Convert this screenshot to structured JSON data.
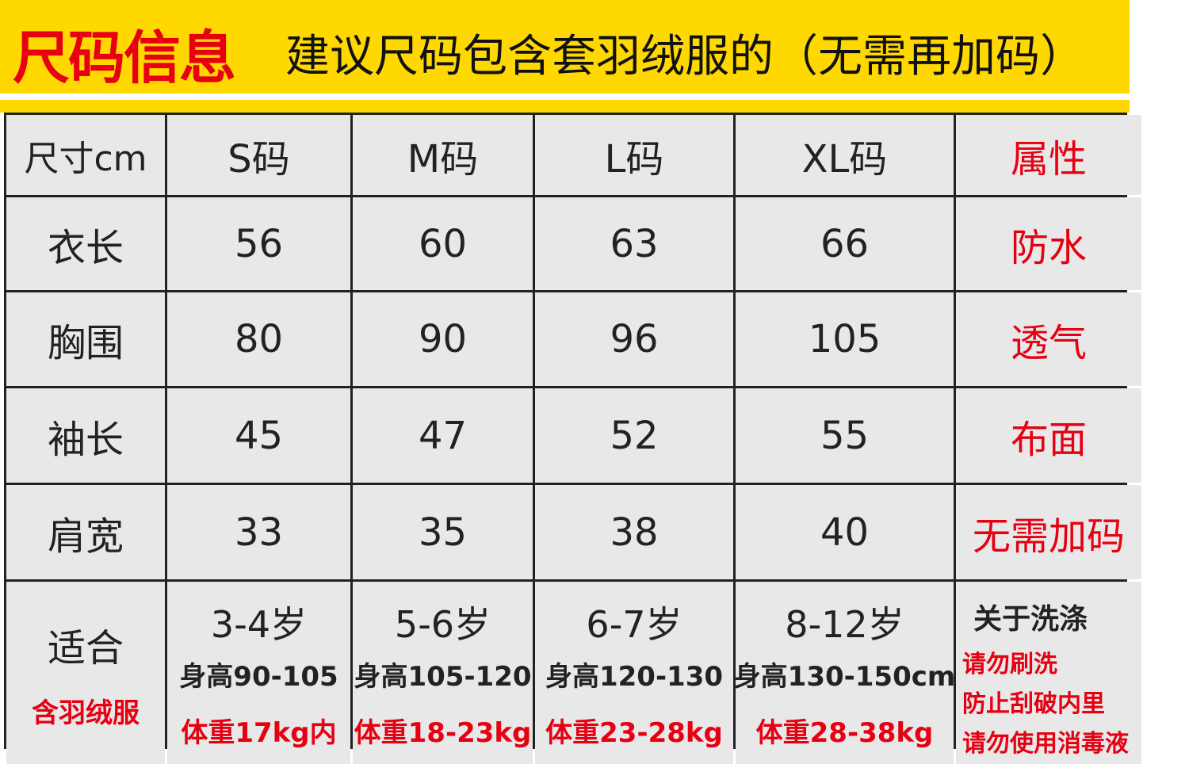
{
  "header": {
    "title": "尺码信息",
    "subtitle": "建议尺码包含套羽绒服的（无需再加码）"
  },
  "table": {
    "columns": [
      "尺寸cm",
      "S码",
      "M码",
      "L码",
      "XL码",
      "属性"
    ],
    "rows": [
      {
        "label": "衣长",
        "values": [
          "56",
          "60",
          "63",
          "66"
        ],
        "attribute": "防水"
      },
      {
        "label": "胸围",
        "values": [
          "80",
          "90",
          "96",
          "105"
        ],
        "attribute": "透气"
      },
      {
        "label": "袖长",
        "values": [
          "45",
          "47",
          "52",
          "55"
        ],
        "attribute": "布面"
      },
      {
        "label": "肩宽",
        "values": [
          "33",
          "35",
          "38",
          "40"
        ],
        "attribute": "无需加码"
      }
    ],
    "fit": {
      "label": "适合",
      "note": "含羽绒服",
      "sizes": [
        {
          "age": "3-4岁",
          "height": "身高90-105",
          "weight": "体重17kg内"
        },
        {
          "age": "5-6岁",
          "height": "身高105-120",
          "weight": "体重18-23kg"
        },
        {
          "age": "6-7岁",
          "height": "身高120-130",
          "weight": "体重23-28kg"
        },
        {
          "age": "8-12岁",
          "height": "身高130-150cm",
          "weight": "体重28-38kg"
        }
      ],
      "washing": {
        "title": "关于洗涤",
        "lines": [
          "请勿刷洗",
          "防止刮破内里",
          "请勿使用消毒液"
        ]
      }
    }
  },
  "colors": {
    "banner": "#ffd800",
    "accent": "#e60012",
    "cell": "#e8e8e8",
    "border": "#222222"
  }
}
